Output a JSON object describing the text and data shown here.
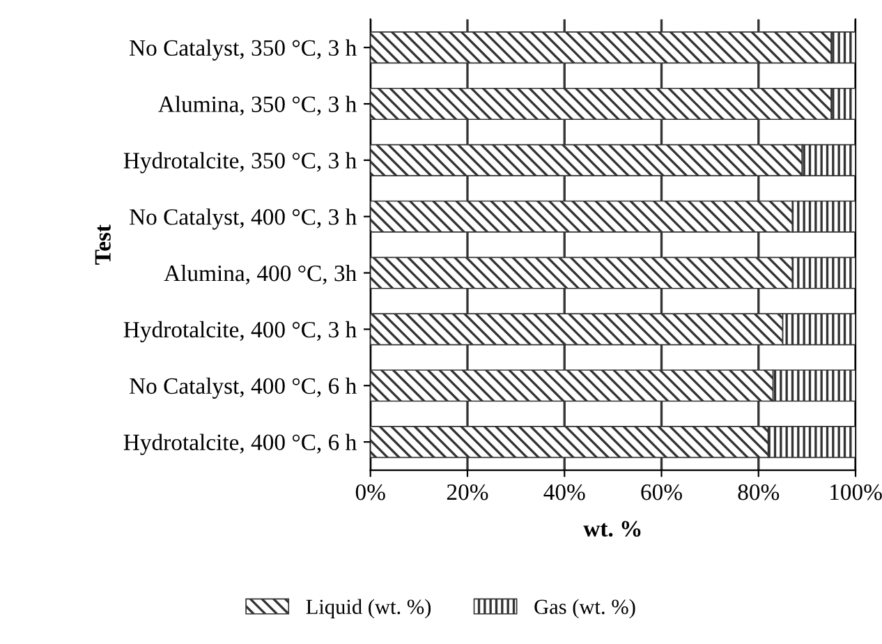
{
  "chart_data": {
    "type": "bar",
    "orientation": "horizontal",
    "stacked": true,
    "xlabel": "wt. %",
    "ylabel": "Test",
    "categories": [
      "No Catalyst, 350 °C, 3 h",
      "Alumina, 350 °C, 3 h",
      "Hydrotalcite, 350 °C, 3 h",
      "No Catalyst, 400 °C, 3 h",
      "Alumina, 400 °C, 3h",
      "Hydrotalcite, 400 °C, 3 h",
      "No Catalyst, 400 °C, 6 h",
      "Hydrotalcite, 400 °C, 6 h"
    ],
    "series": [
      {
        "name": "Liquid (wt. %)",
        "color": "#333333",
        "values": [
          95,
          95,
          89,
          87,
          87,
          85,
          83,
          82
        ]
      },
      {
        "name": "Gas (wt. %)",
        "color": "#333333",
        "values": [
          5,
          5,
          11,
          13,
          13,
          15,
          17,
          18
        ]
      }
    ],
    "xlim": [
      0,
      100
    ],
    "xticks": [
      {
        "value": 0,
        "label": "0%"
      },
      {
        "value": 20,
        "label": "20%"
      },
      {
        "value": 40,
        "label": "40%"
      },
      {
        "value": 60,
        "label": "60%"
      },
      {
        "value": 80,
        "label": "80%"
      },
      {
        "value": 100,
        "label": "100%"
      }
    ],
    "grid": "x",
    "legend": "bottom"
  }
}
